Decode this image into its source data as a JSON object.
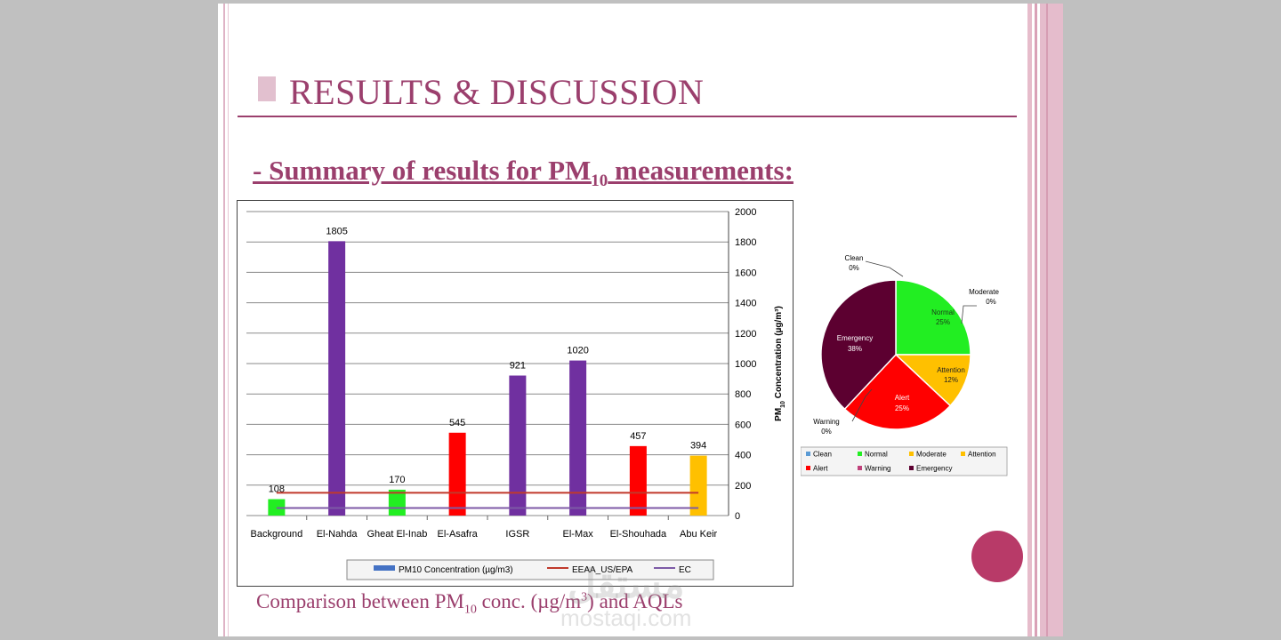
{
  "slide": {
    "title": "RESULTS & DISCUSSION",
    "subtitle_pre": "- Summary of results for PM",
    "subtitle_sub": "10",
    "subtitle_post": " measurements:",
    "caption_pre": "Comparison between PM",
    "caption_sub": "10",
    "caption_mid": " conc. (µg/m",
    "caption_sup": "3",
    "caption_post": ") and AQLs",
    "watermark_ar": "مستقل",
    "watermark_en": "mostaqi.com"
  },
  "colors": {
    "accent": "#9b3f6d",
    "button": "#b83a68",
    "green": "#22ee22",
    "purple": "#7030a0",
    "red": "#ff0000",
    "orange": "#ffc000",
    "eeaa_line": "#c0392b",
    "ec_line": "#7d5aa6",
    "emergency": "#5c0030"
  },
  "chart_data": [
    {
      "type": "bar",
      "categories": [
        "Background",
        "El-Nahda",
        "Gheat El-Inab",
        "El-Asafra",
        "IGSR",
        "El-Max",
        "El-Shouhada",
        "Abu Keir"
      ],
      "values": [
        108,
        1805,
        170,
        545,
        921,
        1020,
        457,
        394
      ],
      "bar_colors": [
        "#22ee22",
        "#7030a0",
        "#22ee22",
        "#ff0000",
        "#7030a0",
        "#7030a0",
        "#ff0000",
        "#ffc000"
      ],
      "y_ticks": [
        "0",
        "200",
        "400",
        "600",
        "800",
        "1000",
        "1200",
        "1400",
        "1600",
        "1800",
        "2000"
      ],
      "ylim": [
        0,
        2000
      ],
      "ylabel_pre": "PM",
      "ylabel_sub": "10",
      "ylabel_post": " Concentration (µg/m³)",
      "grid": true,
      "lines": [
        {
          "name": "EEAA_US/EPA",
          "value": 150,
          "color": "#c0392b"
        },
        {
          "name": "EC",
          "value": 50,
          "color": "#7d5aa6"
        }
      ],
      "legend": {
        "placement": "bottom",
        "items": [
          {
            "label": "PM10 Concentration (µg/m3)",
            "kind": "bar",
            "color": "#4472c4"
          },
          {
            "label": "EEAA_US/EPA",
            "kind": "line",
            "color": "#c0392b"
          },
          {
            "label": "EC",
            "kind": "line",
            "color": "#7d5aa6"
          }
        ]
      }
    },
    {
      "type": "pie",
      "slices": [
        {
          "name": "Clean",
          "pct": "0%",
          "value": 0,
          "color": "#5b9bd5"
        },
        {
          "name": "Normal",
          "pct": "25%",
          "value": 25,
          "color": "#22ee22"
        },
        {
          "name": "Moderate",
          "pct": "0%",
          "value": 0,
          "color": "#ffc000"
        },
        {
          "name": "Attention",
          "pct": "12%",
          "value": 12,
          "color": "#ffc000"
        },
        {
          "name": "Alert",
          "pct": "25%",
          "value": 25,
          "color": "#ff0000"
        },
        {
          "name": "Warning",
          "pct": "0%",
          "value": 0,
          "color": "#c0407a"
        },
        {
          "name": "Emergency",
          "pct": "38%",
          "value": 38,
          "color": "#5c0030"
        }
      ],
      "legend": {
        "placement": "bottom"
      }
    }
  ]
}
